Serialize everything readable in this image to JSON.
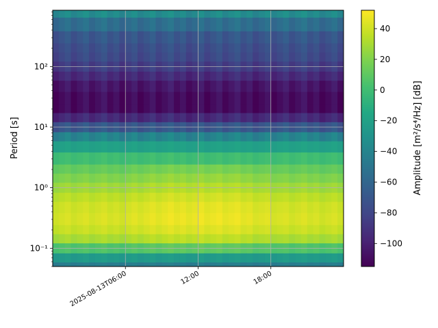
{
  "chart_data": {
    "type": "heatmap",
    "title": "",
    "xlabel": "",
    "ylabel": "Period [s]",
    "colorbar_label": "Amplitude [m²/s⁴/Hz] [dB]",
    "colormap": "viridis",
    "color_range": [
      -115,
      52
    ],
    "y_scale": "log",
    "y_range_s": [
      0.05,
      850
    ],
    "x_range": [
      "2025-08-13T00:00",
      "2025-08-14T00:00"
    ],
    "x_ticks": [
      {
        "at": "2025-08-13T06:00",
        "label": "2025-08-13T06:00"
      },
      {
        "at": "2025-08-13T12:00",
        "label": "12:00"
      },
      {
        "at": "2025-08-13T18:00",
        "label": "18:00"
      }
    ],
    "y_ticks": [
      {
        "value": 0.1,
        "label": "10⁻¹"
      },
      {
        "value": 1,
        "label": "10⁰"
      },
      {
        "value": 10,
        "label": "10¹"
      },
      {
        "value": 100,
        "label": "10²"
      }
    ],
    "colorbar_ticks": [
      40,
      20,
      0,
      -20,
      -40,
      -60,
      -80,
      -100
    ],
    "grid": true,
    "time_steps_hours": [
      0,
      0.5,
      1,
      1.5,
      2,
      2.5,
      3,
      3.5,
      4,
      4.5,
      5,
      5.5,
      6,
      6.5,
      7,
      7.5,
      8,
      8.5,
      9,
      9.5,
      10,
      10.5,
      11,
      11.5,
      12,
      12.5,
      13,
      13.5,
      14,
      14.5,
      15,
      15.5,
      16,
      16.5,
      17,
      17.5,
      18,
      18.5,
      19,
      19.5,
      20,
      20.5,
      21,
      21.5,
      22,
      22.5,
      23,
      23.5
    ],
    "periods_s": [
      0.05,
      0.07,
      0.1,
      0.15,
      0.2,
      0.3,
      0.5,
      0.7,
      1,
      1.5,
      2,
      3,
      5,
      7,
      10,
      15,
      20,
      30,
      50,
      70,
      100,
      150,
      200,
      300,
      500,
      850
    ],
    "amplitude_profile_db": [
      -45,
      -25,
      5,
      30,
      38,
      42,
      40,
      35,
      28,
      20,
      12,
      0,
      -20,
      -40,
      -70,
      -95,
      -110,
      -110,
      -105,
      -95,
      -85,
      -78,
      -75,
      -70,
      -55,
      -35
    ],
    "daytime_boost_db": 6
  }
}
